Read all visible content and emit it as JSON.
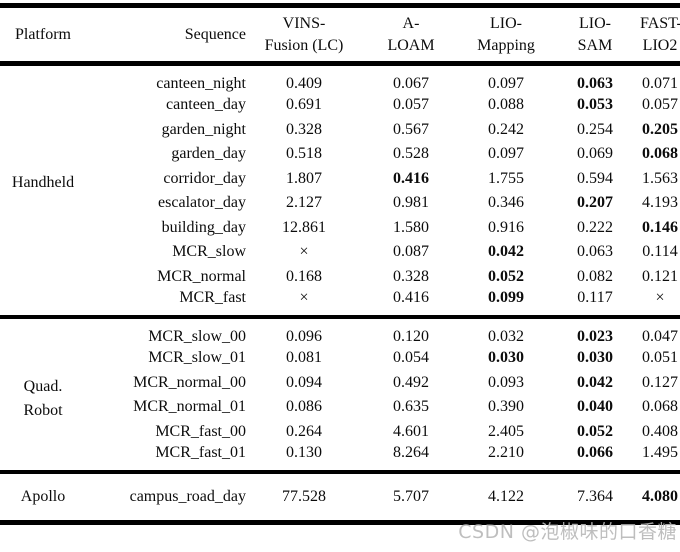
{
  "header": {
    "platform": "Platform",
    "sequence": "Sequence",
    "methods": [
      {
        "line1": "VINS-",
        "line2": "Fusion (LC)"
      },
      {
        "line1": "A-",
        "line2": "LOAM"
      },
      {
        "line1": "LIO-",
        "line2": "Mapping"
      },
      {
        "line1": "LIO-",
        "line2": "SAM"
      },
      {
        "line1": "FAST-",
        "line2": "LIO2"
      }
    ]
  },
  "groups": [
    {
      "platform_lines": [
        "Handheld"
      ],
      "rows": [
        {
          "sequence": "canteen_night",
          "values": [
            "0.409",
            "0.067",
            "0.097",
            "0.063",
            "0.071"
          ],
          "bold": [
            3
          ]
        },
        {
          "sequence": "canteen_day",
          "values": [
            "0.691",
            "0.057",
            "0.088",
            "0.053",
            "0.057"
          ],
          "bold": [
            3
          ]
        },
        {
          "sequence": "garden_night",
          "values": [
            "0.328",
            "0.567",
            "0.242",
            "0.254",
            "0.205"
          ],
          "bold": [
            4
          ]
        },
        {
          "sequence": "garden_day",
          "values": [
            "0.518",
            "0.528",
            "0.097",
            "0.069",
            "0.068"
          ],
          "bold": [
            4
          ]
        },
        {
          "sequence": "corridor_day",
          "values": [
            "1.807",
            "0.416",
            "1.755",
            "0.594",
            "1.563"
          ],
          "bold": [
            1
          ]
        },
        {
          "sequence": "escalator_day",
          "values": [
            "2.127",
            "0.981",
            "0.346",
            "0.207",
            "4.193"
          ],
          "bold": [
            3
          ]
        },
        {
          "sequence": "building_day",
          "values": [
            "12.861",
            "1.580",
            "0.916",
            "0.222",
            "0.146"
          ],
          "bold": [
            4
          ]
        },
        {
          "sequence": "MCR_slow",
          "values": [
            "×",
            "0.087",
            "0.042",
            "0.063",
            "0.114"
          ],
          "bold": [
            2
          ]
        },
        {
          "sequence": "MCR_normal",
          "values": [
            "0.168",
            "0.328",
            "0.052",
            "0.082",
            "0.121"
          ],
          "bold": [
            2
          ]
        },
        {
          "sequence": "MCR_fast",
          "values": [
            "×",
            "0.416",
            "0.099",
            "0.117",
            "×"
          ],
          "bold": [
            2
          ]
        }
      ]
    },
    {
      "platform_lines": [
        "Quad.",
        "Robot"
      ],
      "rows": [
        {
          "sequence": "MCR_slow_00",
          "values": [
            "0.096",
            "0.120",
            "0.032",
            "0.023",
            "0.047"
          ],
          "bold": [
            3
          ]
        },
        {
          "sequence": "MCR_slow_01",
          "values": [
            "0.081",
            "0.054",
            "0.030",
            "0.030",
            "0.051"
          ],
          "bold": [
            2,
            3
          ]
        },
        {
          "sequence": "MCR_normal_00",
          "values": [
            "0.094",
            "0.492",
            "0.093",
            "0.042",
            "0.127"
          ],
          "bold": [
            3
          ]
        },
        {
          "sequence": "MCR_normal_01",
          "values": [
            "0.086",
            "0.635",
            "0.390",
            "0.040",
            "0.068"
          ],
          "bold": [
            3
          ]
        },
        {
          "sequence": "MCR_fast_00",
          "values": [
            "0.264",
            "4.601",
            "2.405",
            "0.052",
            "0.408"
          ],
          "bold": [
            3
          ]
        },
        {
          "sequence": "MCR_fast_01",
          "values": [
            "0.130",
            "8.264",
            "2.210",
            "0.066",
            "1.495"
          ],
          "bold": [
            3
          ]
        }
      ]
    },
    {
      "platform_lines": [
        "Apollo"
      ],
      "rows": [
        {
          "sequence": "campus_road_day",
          "values": [
            "77.528",
            "5.707",
            "4.122",
            "7.364",
            "4.080"
          ],
          "bold": [
            4
          ]
        }
      ]
    }
  ],
  "symbols": {
    "fail": "×"
  },
  "watermark": {
    "text": "CSDN @泡椒味的口香糖"
  },
  "colors": {
    "rule": "#000000",
    "text": "#0c0c0c",
    "watermark": "#b8b8b8",
    "background": "#ffffff"
  }
}
